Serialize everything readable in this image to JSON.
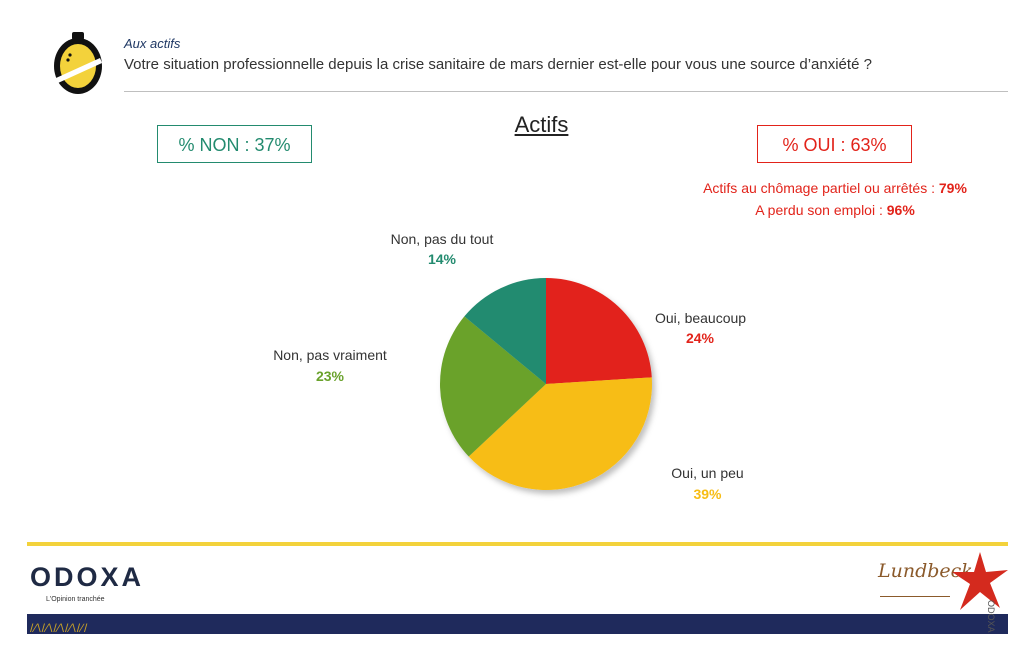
{
  "header": {
    "subtitle": "Aux actifs",
    "question": "Votre situation professionnelle depuis la crise sanitaire de mars dernier est-elle pour vous une source d’anxiété ?"
  },
  "summary": {
    "non_box": "% NON : 37%",
    "oui_box": "% OUI : 63%",
    "note1_label": "Actifs au chômage partiel ou arrêtés : ",
    "note1_value": "79%",
    "note2_label": "A perdu son emploi : ",
    "note2_value": "96%"
  },
  "chart_data": {
    "type": "pie",
    "title": "Actifs",
    "slices": [
      {
        "label": "Oui, beaucoup",
        "value": 24,
        "value_label": "24%",
        "color": "#e2231a"
      },
      {
        "label": "Oui, un peu",
        "value": 39,
        "value_label": "39%",
        "color": "#f7bd14"
      },
      {
        "label": "Non, pas vraiment",
        "value": 23,
        "value_label": "23%",
        "color": "#6aa22c"
      },
      {
        "label": "Non, pas du tout",
        "value": 14,
        "value_label": "14%",
        "color": "#238b6f"
      }
    ]
  },
  "footer": {
    "brand": "ODOXA",
    "tagline": "L'Opinion tranchée",
    "partner": "Lundbeck",
    "side_mark": "ODOXA",
    "pattern": "/∕\\/∕\\/∕\\/∕\\/∕/"
  },
  "colors": {
    "accent_yellow": "#f3d23b",
    "navy": "#1f2a5c",
    "non_green": "#238b6f",
    "oui_red": "#e2231a"
  }
}
